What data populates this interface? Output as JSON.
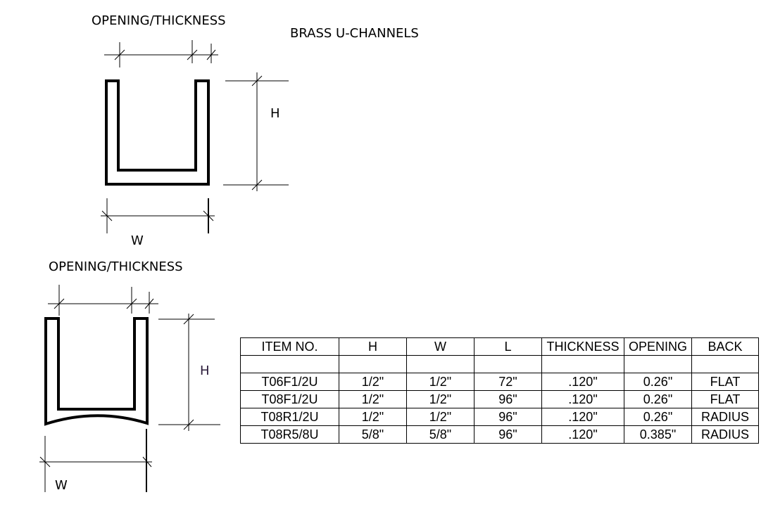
{
  "title": "BRASS U-CHANNELS",
  "drawings": [
    {
      "variant": "flat back",
      "opening_thickness_label": "OPENING/THICKNESS",
      "h_label": "H",
      "w_label": "W"
    },
    {
      "variant": "radius back",
      "opening_thickness_label": "OPENING/THICKNESS",
      "h_label": "H",
      "w_label": "W"
    }
  ],
  "table": {
    "headers": [
      "ITEM NO.",
      "H",
      "W",
      "L",
      "THICKNESS",
      "OPENING",
      "BACK"
    ],
    "rows": [
      [
        "",
        "",
        "",
        "",
        "",
        "",
        ""
      ],
      [
        "T06F1/2U",
        "1/2\"",
        "1/2\"",
        "72\"",
        ".120\"",
        "0.26\"",
        "FLAT"
      ],
      [
        "T08F1/2U",
        "1/2\"",
        "1/2\"",
        "96\"",
        ".120\"",
        "0.26\"",
        "FLAT"
      ],
      [
        "T08R1/2U",
        "1/2\"",
        "1/2\"",
        "96\"",
        ".120\"",
        "0.26\"",
        "RADIUS"
      ],
      [
        "T08R5/8U",
        "5/8\"",
        "5/8\"",
        "96\"",
        ".120\"",
        "0.385\"",
        "RADIUS"
      ]
    ]
  }
}
